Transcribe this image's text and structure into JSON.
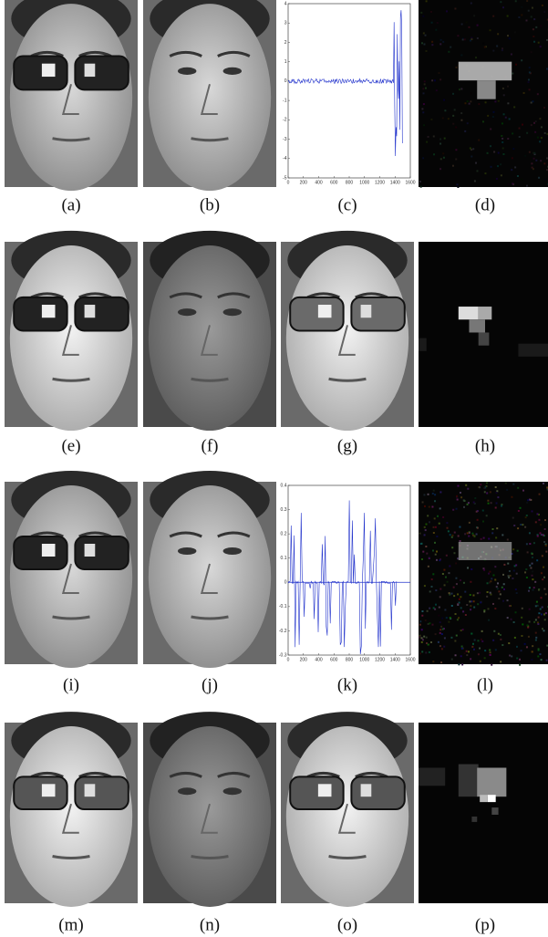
{
  "figure": {
    "panels": [
      {
        "label": "(a)"
      },
      {
        "label": "(b)"
      },
      {
        "label": "(c)",
        "plot": {
          "xlim": [
            0,
            1600
          ],
          "ylim": [
            -5,
            4
          ],
          "xticks": [
            0,
            200,
            400,
            600,
            800,
            1000,
            1200,
            1400,
            1600
          ],
          "yticks": [
            -5,
            -4,
            -3,
            -2,
            -1,
            0,
            1,
            2,
            3,
            4
          ]
        }
      },
      {
        "label": "(d)"
      },
      {
        "label": "(e)"
      },
      {
        "label": "(f)"
      },
      {
        "label": "(g)"
      },
      {
        "label": "(h)"
      },
      {
        "label": "(i)"
      },
      {
        "label": "(j)"
      },
      {
        "label": "(k)",
        "plot": {
          "xlim": [
            0,
            1600
          ],
          "ylim": [
            -0.3,
            0.4
          ],
          "xticks": [
            0,
            200,
            400,
            600,
            800,
            1000,
            1200,
            1400,
            1600
          ],
          "yticks": [
            -0.3,
            -0.2,
            -0.1,
            0,
            0.1,
            0.2,
            0.3,
            0.4
          ]
        }
      },
      {
        "label": "(l)"
      },
      {
        "label": "(m)"
      },
      {
        "label": "(n)"
      },
      {
        "label": "(o)"
      },
      {
        "label": "(p)"
      }
    ]
  }
}
